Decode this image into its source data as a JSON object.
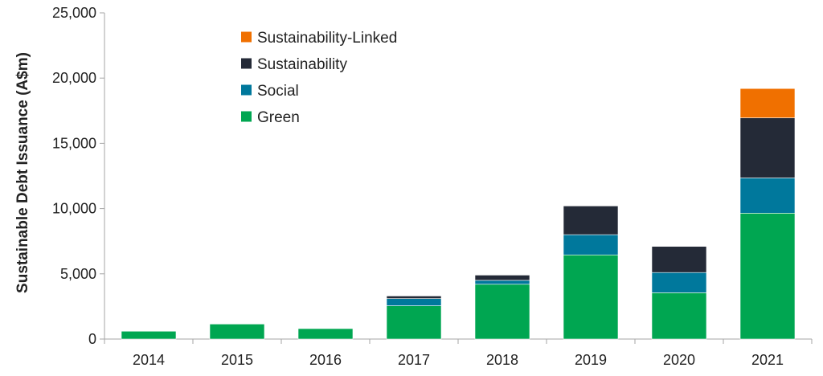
{
  "chart_data": {
    "type": "bar",
    "stacked": true,
    "title": "",
    "xlabel": "",
    "ylabel": "Sustainable Debt Issuance (A$m)",
    "ylim": [
      0,
      25000
    ],
    "yticks": [
      0,
      5000,
      10000,
      15000,
      20000,
      25000
    ],
    "ytick_labels": [
      "0",
      "5,000",
      "10,000",
      "15,000",
      "20,000",
      "25,000"
    ],
    "categories": [
      "2014",
      "2015",
      "2016",
      "2017",
      "2018",
      "2019",
      "2020",
      "2021"
    ],
    "series": [
      {
        "name": "Green",
        "color": "#00a651",
        "values": [
          600,
          1150,
          800,
          2550,
          4200,
          6450,
          3550,
          9650
        ]
      },
      {
        "name": "Social",
        "color": "#00789c",
        "values": [
          0,
          0,
          0,
          550,
          300,
          1550,
          1550,
          2700
        ]
      },
      {
        "name": "Sustainability",
        "color": "#242a37",
        "values": [
          0,
          0,
          0,
          200,
          400,
          2200,
          2000,
          4600
        ]
      },
      {
        "name": "Sustainability-Linked",
        "color": "#f07000",
        "values": [
          0,
          0,
          0,
          0,
          0,
          0,
          0,
          2250
        ]
      }
    ],
    "legend_order": [
      "Sustainability-Linked",
      "Sustainability",
      "Social",
      "Green"
    ],
    "legend_position": "top-left",
    "grid": false
  }
}
